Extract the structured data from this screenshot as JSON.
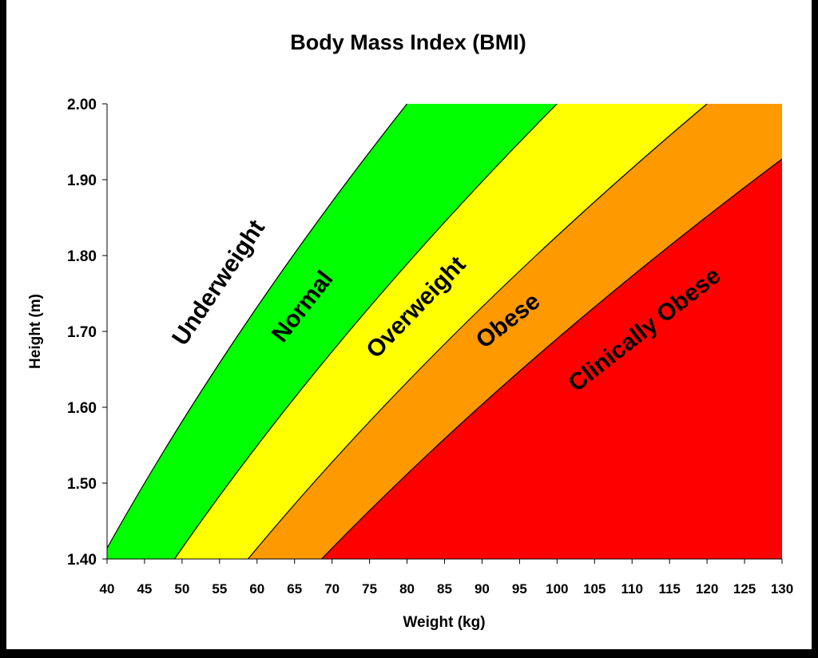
{
  "chart_data": {
    "type": "area",
    "title": "Body Mass Index (BMI)",
    "xlabel": "Weight (kg)",
    "ylabel": "Height (m)",
    "xlim": [
      40,
      130
    ],
    "ylim": [
      1.4,
      2.0
    ],
    "x_ticks": [
      "40",
      "45",
      "50",
      "55",
      "60",
      "65",
      "70",
      "75",
      "80",
      "85",
      "90",
      "95",
      "100",
      "105",
      "110",
      "115",
      "120",
      "125",
      "130"
    ],
    "y_ticks": [
      "1.40",
      "1.50",
      "1.60",
      "1.70",
      "1.80",
      "1.90",
      "2.00"
    ],
    "grid": false,
    "background": "#FFFFFF",
    "boundaries_bmi": [
      20,
      25,
      30,
      35
    ],
    "bands": [
      {
        "name": "Underweight",
        "bmi_min": null,
        "bmi_max": 20,
        "color": "#FFFFFF"
      },
      {
        "name": "Normal",
        "bmi_min": 20,
        "bmi_max": 25,
        "color": "#00FF00"
      },
      {
        "name": "Overweight",
        "bmi_min": 25,
        "bmi_max": 30,
        "color": "#FFFF00"
      },
      {
        "name": "Obese",
        "bmi_min": 30,
        "bmi_max": 35,
        "color": "#FF9900"
      },
      {
        "name": "Clinically Obese",
        "bmi_min": 35,
        "bmi_max": null,
        "color": "#FF0000"
      }
    ]
  }
}
